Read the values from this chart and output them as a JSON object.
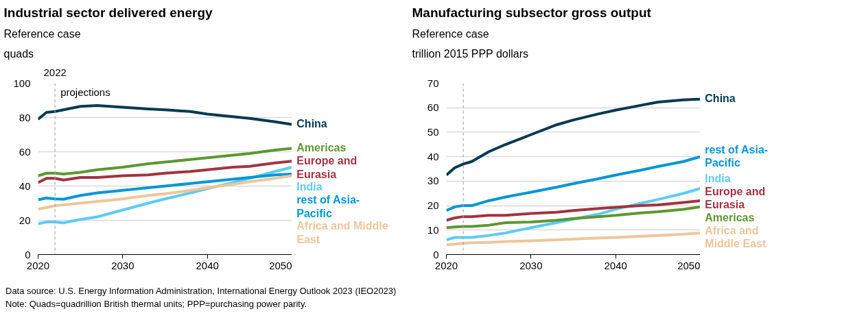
{
  "chart_data": [
    {
      "type": "line",
      "title": "Industrial sector delivered energy",
      "subtitle": "Reference case",
      "ylabel": "quads",
      "x": [
        2020,
        2021,
        2022,
        2023,
        2025,
        2027,
        2030,
        2033,
        2035,
        2038,
        2040,
        2043,
        2045,
        2048,
        2050
      ],
      "series": [
        {
          "name": "China",
          "color": "#003953",
          "values": [
            79,
            83,
            83.5,
            84.5,
            86.5,
            87,
            86,
            85,
            84.5,
            83.5,
            82,
            80.5,
            79.5,
            77.5,
            76
          ]
        },
        {
          "name": "Americas",
          "color": "#5d9732",
          "values": [
            46,
            47.5,
            47.5,
            47,
            48,
            49.5,
            51,
            53,
            54,
            55.5,
            56.5,
            58,
            59,
            61,
            62
          ]
        },
        {
          "name": "Europe and Eurasia",
          "color": "#a33340",
          "values": [
            42,
            44.5,
            44.5,
            43.5,
            45,
            45,
            46,
            46.5,
            47.5,
            48.5,
            49.5,
            51,
            51.5,
            53.5,
            54.5
          ]
        },
        {
          "name": "India",
          "color": "#5ecbf5",
          "values": [
            18,
            19,
            19,
            18.5,
            20.5,
            22,
            26,
            30,
            32.5,
            36,
            38.5,
            42,
            44.5,
            48.5,
            51
          ]
        },
        {
          "name": "rest of Asia-Pacific",
          "color": "#0096d7",
          "values": [
            32,
            33,
            32.5,
            32.3,
            34.5,
            36,
            37.5,
            39,
            40,
            41.5,
            42.5,
            44,
            45,
            46.5,
            47
          ]
        },
        {
          "name": "Africa and Middle East",
          "color": "#efc59a",
          "values": [
            26.5,
            27.5,
            28.5,
            29,
            30,
            31,
            32.5,
            34.5,
            35.5,
            37.5,
            39,
            41,
            42.5,
            44.5,
            46
          ]
        }
      ],
      "xlim": [
        2020,
        2050
      ],
      "xticks": [
        2020,
        2030,
        2040,
        2050
      ],
      "ylim": [
        0,
        100
      ],
      "yticks": [
        0,
        20,
        40,
        60,
        80,
        100
      ],
      "ref_lines": [
        {
          "axis": "x",
          "value": 2022,
          "label": "2022",
          "color": "#a6a6a6",
          "line_style": "dashed"
        }
      ],
      "annotations": [
        {
          "text": "projections",
          "x": 2022,
          "y": 95
        },
        "Data source: U.S. Energy Information Administration, International Energy Outlook 2023 (IEO2023)",
        "Note: Quads=quadrillion British thermal units; PPP=purchasing power parity."
      ],
      "grid": "y",
      "marker": "none",
      "line_style": "solid"
    },
    {
      "type": "line",
      "title": "Manufacturing subsector gross output",
      "subtitle": "Reference case",
      "ylabel": "trillion 2015 PPP dollars",
      "x": [
        2020,
        2021,
        2022,
        2023,
        2025,
        2027,
        2030,
        2033,
        2035,
        2038,
        2040,
        2043,
        2045,
        2048,
        2050
      ],
      "series": [
        {
          "name": "China",
          "color": "#003953",
          "values": [
            32.5,
            35.5,
            37,
            38,
            42,
            45,
            49,
            53,
            55,
            57.5,
            59,
            61,
            62.3,
            63.2,
            63.5
          ]
        },
        {
          "name": "rest of Asia-Pacific",
          "color": "#0096d7",
          "values": [
            18,
            19.5,
            20,
            20,
            22,
            23.5,
            25.5,
            27.5,
            29,
            31,
            32.5,
            34.5,
            36,
            38,
            40
          ]
        },
        {
          "name": "India",
          "color": "#5ecbf5",
          "values": [
            6,
            7,
            7,
            7,
            7.8,
            8.8,
            11,
            13,
            14.5,
            16.5,
            18.5,
            21,
            22.5,
            25,
            27
          ]
        },
        {
          "name": "Europe and Eurasia",
          "color": "#a33340",
          "values": [
            14,
            15,
            15.5,
            15.5,
            16,
            16,
            16.8,
            17.3,
            18,
            18.8,
            19.3,
            20,
            20.3,
            21.3,
            22
          ]
        },
        {
          "name": "Americas",
          "color": "#5d9732",
          "values": [
            11,
            11.3,
            11.5,
            11.5,
            12,
            13,
            13.3,
            14,
            14.7,
            15.5,
            16,
            17,
            17.5,
            18.5,
            19.5
          ]
        },
        {
          "name": "Africa and Middle East",
          "color": "#efc59a",
          "values": [
            4,
            4.3,
            4.6,
            4.8,
            5,
            5.3,
            5.6,
            6,
            6.3,
            6.8,
            7,
            7.5,
            7.8,
            8.3,
            8.8
          ]
        }
      ],
      "xlim": [
        2020,
        2050
      ],
      "xticks": [
        2020,
        2030,
        2040,
        2050
      ],
      "ylim": [
        0,
        70
      ],
      "yticks": [
        0,
        10,
        20,
        30,
        40,
        50,
        60,
        70
      ],
      "ref_lines": [
        {
          "axis": "x",
          "value": 2022,
          "color": "#a6a6a6",
          "line_style": "dashed"
        }
      ],
      "grid": "y",
      "marker": "none",
      "line_style": "solid"
    }
  ]
}
